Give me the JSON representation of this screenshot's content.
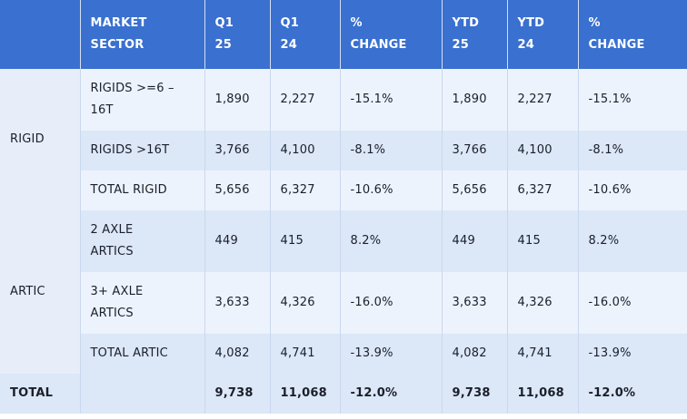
{
  "header": {
    "sector": [
      "MARKET",
      "SECTOR"
    ],
    "q1_25": [
      "Q1",
      "25"
    ],
    "q1_24": [
      "Q1",
      "24"
    ],
    "q_change": [
      "%",
      "CHANGE"
    ],
    "ytd_25": [
      "YTD",
      "25"
    ],
    "ytd_24": [
      "YTD",
      "24"
    ],
    "ytd_change": [
      "%",
      "CHANGE"
    ]
  },
  "groups": {
    "rigid": "RIGID",
    "artic": "ARTIC"
  },
  "rows": [
    {
      "sub": [
        "RIGIDS >=6 –",
        "16T"
      ],
      "q1_25": "1,890",
      "q1_24": "2,227",
      "q_change": "-15.1%",
      "ytd_25": "1,890",
      "ytd_24": "2,227",
      "ytd_change": "-15.1%"
    },
    {
      "sub": [
        "RIGIDS >16T"
      ],
      "q1_25": "3,766",
      "q1_24": "4,100",
      "q_change": "-8.1%",
      "ytd_25": "3,766",
      "ytd_24": "4,100",
      "ytd_change": "-8.1%"
    },
    {
      "sub": [
        "TOTAL RIGID"
      ],
      "q1_25": "5,656",
      "q1_24": "6,327",
      "q_change": "-10.6%",
      "ytd_25": "5,656",
      "ytd_24": "6,327",
      "ytd_change": "-10.6%"
    },
    {
      "sub": [
        "2 AXLE",
        "ARTICS"
      ],
      "q1_25": "449",
      "q1_24": "415",
      "q_change": "8.2%",
      "ytd_25": "449",
      "ytd_24": "415",
      "ytd_change": "8.2%"
    },
    {
      "sub": [
        "3+ AXLE",
        "ARTICS"
      ],
      "q1_25": "3,633",
      "q1_24": "4,326",
      "q_change": "-16.0%",
      "ytd_25": "3,633",
      "ytd_24": "4,326",
      "ytd_change": "-16.0%"
    },
    {
      "sub": [
        "TOTAL ARTIC"
      ],
      "q1_25": "4,082",
      "q1_24": "4,741",
      "q_change": "-13.9%",
      "ytd_25": "4,082",
      "ytd_24": "4,741",
      "ytd_change": "-13.9%"
    }
  ],
  "total": {
    "label": "TOTAL",
    "q1_25": "9,738",
    "q1_24": "11,068",
    "q_change": "-12.0%",
    "ytd_25": "9,738",
    "ytd_24": "11,068",
    "ytd_change": "-12.0%"
  }
}
